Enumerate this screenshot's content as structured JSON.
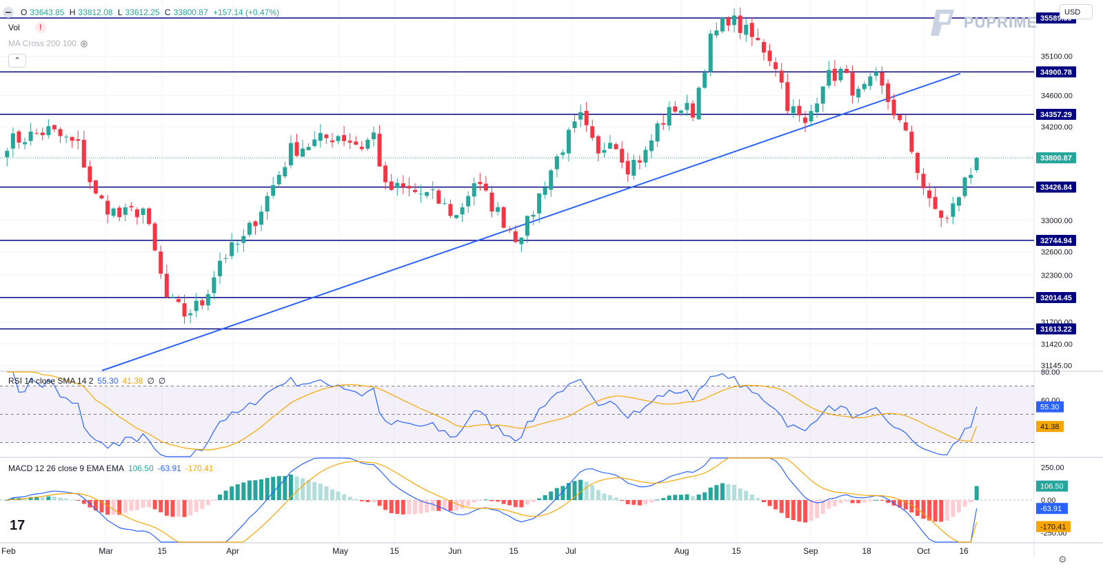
{
  "header": {
    "ohlc": {
      "o_label": "O",
      "o": "33643.85",
      "h_label": "H",
      "h": "33812.08",
      "l_label": "L",
      "l": "33612.25",
      "c_label": "C",
      "c": "33800.87",
      "change": "+157.14 (+0.47%)"
    },
    "vol_label": "Vol",
    "ma_label": "MA Cross 200 100",
    "collapse_glyph": "⌃",
    "currency": "USD",
    "brand": "PUPRIME"
  },
  "rsi_legend": {
    "label": "RSI 14 close SMA 14 2",
    "rsi": "55.30",
    "sma": "41.38",
    "e1": "∅",
    "e2": "∅"
  },
  "macd_legend": {
    "label": "MACD 12 26 close 9 EMA EMA",
    "hist": "106.50",
    "macd": "-63.91",
    "signal": "-170.41"
  },
  "colors": {
    "up": "#26a69a",
    "down": "#f23645",
    "level": "#000080",
    "trend": "#2962ff",
    "rsi": "#2962ff",
    "rsi_sma": "#f7a600",
    "macd": "#2962ff",
    "signal": "#f7a600"
  },
  "chart_data": {
    "type": "candlestick",
    "price_axis": {
      "ticks": [
        35100.0,
        34600.0,
        34200.0,
        33000.0,
        32600.0,
        32300.0,
        31700.0,
        31420.0,
        31145.0
      ],
      "range": [
        31080,
        35820
      ]
    },
    "levels": [
      35589.99,
      34900.78,
      34357.29,
      33426.84,
      32744.94,
      32014.45,
      31613.22
    ],
    "last_price": "33800.87",
    "time_labels": [
      "Feb",
      "Mar",
      "15",
      "Apr",
      "May",
      "15",
      "Jun",
      "15",
      "Jul",
      "Aug",
      "15",
      "Sep",
      "18",
      "Oct",
      "16"
    ],
    "trendline": {
      "from": {
        "date": "Feb 21",
        "price": 31080
      },
      "to": {
        "date": "Oct 12",
        "price": 34880
      }
    },
    "candles": {
      "count": 165,
      "anchors": [
        [
          0,
          34000
        ],
        [
          7,
          34150
        ],
        [
          12,
          33950
        ],
        [
          15,
          33300
        ],
        [
          19,
          33050
        ],
        [
          23,
          33150
        ],
        [
          27,
          32000
        ],
        [
          30,
          31800
        ],
        [
          33,
          31950
        ],
        [
          36,
          32500
        ],
        [
          40,
          32750
        ],
        [
          44,
          33300
        ],
        [
          48,
          33900
        ],
        [
          52,
          34000
        ],
        [
          56,
          34100
        ],
        [
          60,
          33950
        ],
        [
          62,
          34100
        ],
        [
          64,
          33400
        ],
        [
          67,
          33400
        ],
        [
          72,
          33300
        ],
        [
          76,
          33050
        ],
        [
          79,
          33500
        ],
        [
          83,
          33100
        ],
        [
          86,
          32800
        ],
        [
          88,
          32950
        ],
        [
          91,
          33500
        ],
        [
          94,
          33950
        ],
        [
          97,
          34300
        ],
        [
          100,
          33800
        ],
        [
          102,
          34100
        ],
        [
          105,
          33700
        ],
        [
          108,
          33850
        ],
        [
          110,
          34200
        ],
        [
          113,
          34450
        ],
        [
          116,
          34400
        ],
        [
          119,
          35300
        ],
        [
          122,
          35600
        ],
        [
          125,
          35400
        ],
        [
          128,
          35200
        ],
        [
          130,
          35000
        ],
        [
          132,
          34500
        ],
        [
          135,
          34200
        ],
        [
          138,
          34800
        ],
        [
          141,
          34900
        ],
        [
          144,
          34600
        ],
        [
          147,
          34800
        ],
        [
          150,
          34400
        ],
        [
          153,
          33900
        ],
        [
          156,
          33200
        ],
        [
          159,
          33000
        ],
        [
          162,
          33500
        ],
        [
          165,
          33800
        ]
      ],
      "last": {
        "o": 33643.85,
        "h": 33812.08,
        "l": 33612.25,
        "c": 33800.87
      }
    },
    "rsi": {
      "range": [
        20,
        80
      ],
      "ticks": [
        80.0,
        60.0
      ],
      "band": [
        30,
        70
      ],
      "mid": 50,
      "last": 55.3,
      "sma_last": 41.38
    },
    "macd": {
      "range": [
        -320,
        320
      ],
      "ticks": [
        250.0,
        0.0,
        -250.0
      ],
      "hist_last": 106.5,
      "macd_last": -63.91,
      "signal_last": -170.41
    }
  }
}
